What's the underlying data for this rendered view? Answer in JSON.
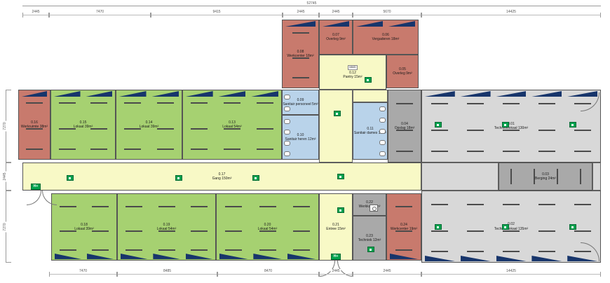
{
  "drawing_type": "floor-plan",
  "rooms": {
    "r01": {
      "code": "0.01",
      "label": "Technieklokaal 130m²"
    },
    "r02": {
      "code": "0.02",
      "label": "Technieklokaal 135m²"
    },
    "r03": {
      "code": "0.03",
      "label": "Berging 24m²"
    },
    "r04": {
      "code": "0.04",
      "label": "Opslag 18m²"
    },
    "r05": {
      "code": "0.05",
      "label": "Overleg 9m²"
    },
    "r06": {
      "code": "0.06",
      "label": "Vergaderen 18m²"
    },
    "r07": {
      "code": "0.07",
      "label": "Overleg 9m²"
    },
    "r08": {
      "code": "0.08",
      "label": "Werkcenter 18m²"
    },
    "r09": {
      "code": "0.09",
      "label": "Sanitair personeel 5m²"
    },
    "r10": {
      "code": "0.10",
      "label": "Sanitair heren 12m²"
    },
    "r11": {
      "code": "0.11",
      "label": "Sanitair dames 13m²"
    },
    "r12": {
      "code": "0.12",
      "label": "Pantry 15m²",
      "note": "MMD"
    },
    "r13": {
      "code": "0.13",
      "label": "Lokaal 54m²"
    },
    "r14": {
      "code": "0.14",
      "label": "Lokaal 39m²"
    },
    "r15": {
      "code": "0.15",
      "label": "Lokaal 39m²"
    },
    "r16": {
      "code": "0.16",
      "label": "Werkruimte 38m²"
    },
    "r17": {
      "code": "0.17",
      "label": "Gang 150m²"
    },
    "r18": {
      "code": "0.18",
      "label": "Lokaal 39m²"
    },
    "r19": {
      "code": "0.19",
      "label": "Lokaal 54m²"
    },
    "r20": {
      "code": "0.20",
      "label": "Lokaal 54m²"
    },
    "r21": {
      "code": "0.21",
      "label": "Entree 15m²"
    },
    "r22": {
      "code": "0.22",
      "label": "Werkkast 6m²"
    },
    "r23": {
      "code": "0.23",
      "label": "Techniek 12m²"
    },
    "r24": {
      "code": "0.24",
      "label": "Werkcenter 19m²"
    }
  },
  "dims": {
    "overall_top": "52745",
    "top": [
      "2445",
      "7470",
      "9415",
      "2445",
      "2445",
      "5670",
      "14425"
    ],
    "bottom": [
      "7470",
      "8485",
      "8470",
      "2445",
      "2445",
      "14425"
    ],
    "left": [
      "7270",
      "2445",
      "7270"
    ]
  },
  "icons": {
    "first_aid": "H+"
  },
  "colors": {
    "classroom_green": "#a6d171",
    "work_red": "#c87a6d",
    "corridor_yellow": "#f8f9c6",
    "sanitary_blue": "#b9d3ea",
    "technical_gray": "#d8d8d8",
    "storage_gray": "#a9a9a9",
    "window_navy": "#17356b",
    "exit_green": "#00a24d"
  }
}
